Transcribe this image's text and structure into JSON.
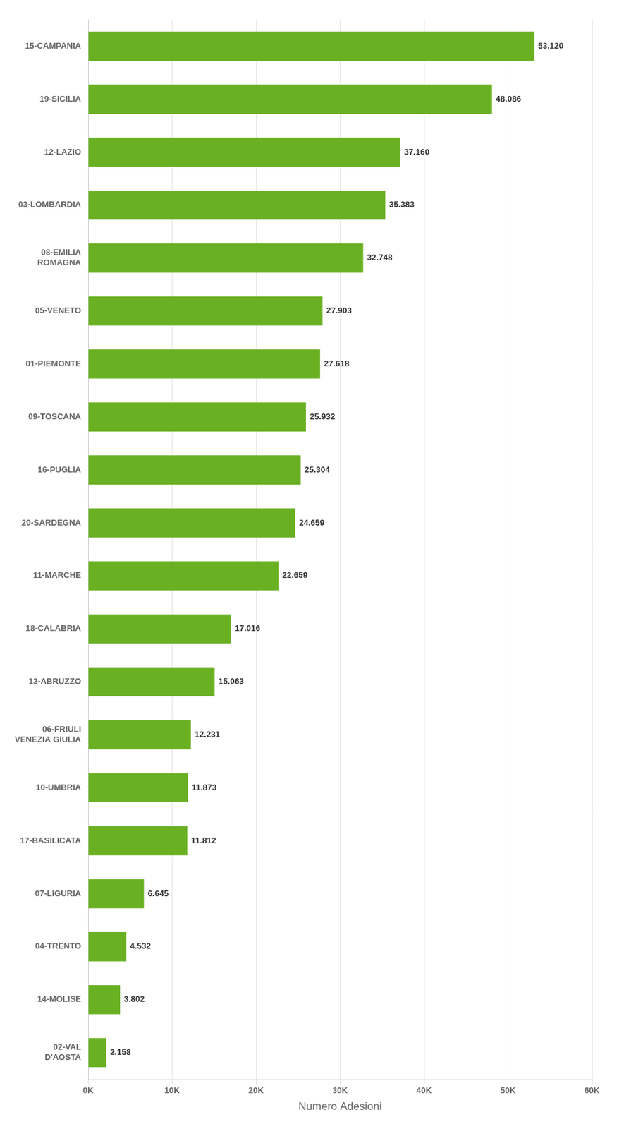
{
  "chart_data": {
    "type": "bar",
    "orientation": "horizontal",
    "categories": [
      "02-VAL\nD'AOSTA",
      "14-MOLISE",
      "04-TRENTO",
      "07-LIGURIA",
      "17-BASILICATA",
      "10-UMBRIA",
      "06-FRIULI\nVENEZIA GIULIA",
      "13-ABRUZZO",
      "18-CALABRIA",
      "11-MARCHE",
      "20-SARDEGNA",
      "16-PUGLIA",
      "09-TOSCANA",
      "01-PIEMONTE",
      "05-VENETO",
      "08-EMILIA\nROMAGNA",
      "03-LOMBARDIA",
      "12-LAZIO",
      "19-SICILIA",
      "15-CAMPANIA"
    ],
    "values": [
      2158,
      3802,
      4532,
      6645,
      11812,
      11873,
      12231,
      15063,
      17016,
      22659,
      24659,
      25304,
      25932,
      27618,
      27903,
      32748,
      35383,
      37160,
      48086,
      53120
    ],
    "value_labels": [
      "2.158",
      "3.802",
      "4.532",
      "6.645",
      "11.812",
      "11.873",
      "12.231",
      "15.063",
      "17.016",
      "22.659",
      "24.659",
      "25.304",
      "25.932",
      "27.618",
      "27.903",
      "32.748",
      "35.383",
      "37.160",
      "48.086",
      "53.120"
    ],
    "data_labels": true,
    "color": "#6ab023",
    "xlabel": "Numero Adesioni",
    "xlim": [
      0,
      60000
    ],
    "xticks": [
      {
        "value": 0,
        "label": "0K"
      },
      {
        "value": 10000,
        "label": "10K"
      },
      {
        "value": 20000,
        "label": "20K"
      },
      {
        "value": 30000,
        "label": "30K"
      },
      {
        "value": 40000,
        "label": "40K"
      },
      {
        "value": 50000,
        "label": "50K"
      },
      {
        "value": 60000,
        "label": "60K"
      }
    ],
    "grid": true
  }
}
